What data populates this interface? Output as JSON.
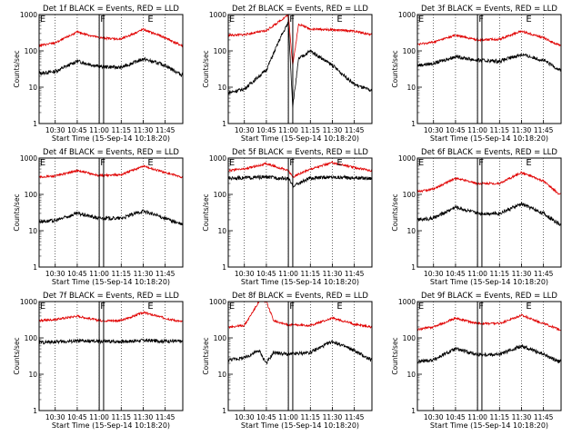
{
  "figure": {
    "xlabel": "Start Time (15-Sep-14 10:18:20)",
    "ylabel": "Counts/sec"
  },
  "colors": {
    "events": "#000000",
    "lld": "#e00000",
    "axes": "#000000",
    "background": "#ffffff"
  },
  "chart_data": [
    {
      "type": "line",
      "title": "Det 1f BLACK = Events, RED = LLD",
      "xlabel": "Start Time (15-Sep-14 10:18:20)",
      "ylabel": "Counts/sec",
      "ylim": [
        1,
        1000
      ],
      "yscale": "log",
      "xticks": [
        "10:30",
        "10:45",
        "11:00",
        "11:15",
        "11:30",
        "11:45"
      ],
      "yticks": [
        "1",
        "10",
        "100",
        "1000"
      ],
      "markers": [
        {
          "label": "E",
          "pos": "left"
        },
        {
          "label": "F",
          "pos": "mid"
        },
        {
          "label": "E",
          "pos": "right"
        }
      ],
      "series": [
        {
          "name": "Events",
          "color": "#000000",
          "x": [
            "10:19",
            "10:30",
            "10:45",
            "11:00",
            "11:15",
            "11:30",
            "11:45",
            "11:56"
          ],
          "values": [
            24,
            27,
            52,
            37,
            35,
            60,
            40,
            22
          ]
        },
        {
          "name": "LLD",
          "color": "#e00000",
          "x": [
            "10:19",
            "10:30",
            "10:45",
            "11:00",
            "11:15",
            "11:30",
            "11:45",
            "11:56"
          ],
          "values": [
            140,
            165,
            330,
            230,
            210,
            390,
            230,
            140
          ]
        }
      ]
    },
    {
      "type": "line",
      "title": "Det 2f BLACK = Events, RED = LLD",
      "xlabel": "Start Time (15-Sep-14 10:18:20)",
      "ylabel": "Counts/sec",
      "ylim": [
        1,
        1000
      ],
      "yscale": "log",
      "xticks": [
        "10:30",
        "10:45",
        "11:00",
        "11:15",
        "11:30",
        "11:45"
      ],
      "yticks": [
        "1",
        "10",
        "100",
        "1000"
      ],
      "markers": [
        {
          "label": "E",
          "pos": "left"
        },
        {
          "label": "F",
          "pos": "mid"
        },
        {
          "label": "E",
          "pos": "right"
        }
      ],
      "series": [
        {
          "name": "Events",
          "color": "#000000",
          "x": [
            "10:19",
            "10:30",
            "10:45",
            "10:55",
            "11:00",
            "11:03",
            "11:07",
            "11:15",
            "11:30",
            "11:45",
            "11:56"
          ],
          "values": [
            7,
            9,
            30,
            250,
            600,
            3,
            60,
            100,
            40,
            12,
            8
          ]
        },
        {
          "name": "LLD",
          "color": "#e00000",
          "x": [
            "10:19",
            "10:30",
            "10:45",
            "10:55",
            "11:00",
            "11:03",
            "11:07",
            "11:15",
            "11:30",
            "11:45",
            "11:56"
          ],
          "values": [
            270,
            280,
            360,
            700,
            1000,
            40,
            550,
            400,
            380,
            350,
            280
          ]
        }
      ]
    },
    {
      "type": "line",
      "title": "Det 3f BLACK = Events, RED = LLD",
      "xlabel": "Start Time (15-Sep-14 10:18:20)",
      "ylabel": "Counts/sec",
      "ylim": [
        1,
        1000
      ],
      "yscale": "log",
      "xticks": [
        "10:30",
        "10:45",
        "11:00",
        "11:15",
        "11:30",
        "11:45"
      ],
      "yticks": [
        "1",
        "10",
        "100",
        "1000"
      ],
      "markers": [
        {
          "label": "E",
          "pos": "left"
        },
        {
          "label": "F",
          "pos": "mid"
        },
        {
          "label": "E",
          "pos": "right"
        }
      ],
      "series": [
        {
          "name": "Events",
          "color": "#000000",
          "x": [
            "10:19",
            "10:30",
            "10:45",
            "11:00",
            "11:15",
            "11:30",
            "11:45",
            "11:56"
          ],
          "values": [
            40,
            45,
            70,
            55,
            52,
            80,
            55,
            30
          ]
        },
        {
          "name": "LLD",
          "color": "#e00000",
          "x": [
            "10:19",
            "10:30",
            "10:45",
            "11:00",
            "11:15",
            "11:30",
            "11:45",
            "11:56"
          ],
          "values": [
            150,
            175,
            270,
            200,
            210,
            350,
            230,
            140
          ]
        }
      ]
    },
    {
      "type": "line",
      "title": "Det 4f BLACK = Events, RED = LLD",
      "xlabel": "Start Time (15-Sep-14 10:18:20)",
      "ylabel": "Counts/sec",
      "ylim": [
        1,
        1000
      ],
      "yscale": "log",
      "xticks": [
        "10:30",
        "10:45",
        "11:00",
        "11:15",
        "11:30",
        "11:45"
      ],
      "yticks": [
        "1",
        "10",
        "100",
        "1000"
      ],
      "markers": [
        {
          "label": "E",
          "pos": "left"
        },
        {
          "label": "F",
          "pos": "mid"
        },
        {
          "label": "E",
          "pos": "right"
        }
      ],
      "series": [
        {
          "name": "Events",
          "color": "#000000",
          "x": [
            "10:19",
            "10:30",
            "10:45",
            "11:00",
            "11:15",
            "11:30",
            "11:45",
            "11:56"
          ],
          "values": [
            18,
            19,
            30,
            22,
            22,
            35,
            22,
            15
          ]
        },
        {
          "name": "LLD",
          "color": "#e00000",
          "x": [
            "10:19",
            "10:30",
            "10:45",
            "11:00",
            "11:15",
            "11:30",
            "11:45",
            "11:56"
          ],
          "values": [
            300,
            320,
            450,
            330,
            350,
            600,
            400,
            300
          ]
        }
      ]
    },
    {
      "type": "line",
      "title": "Det 5f BLACK = Events, RED = LLD",
      "xlabel": "Start Time (15-Sep-14 10:18:20)",
      "ylabel": "Counts/sec",
      "ylim": [
        1,
        1000
      ],
      "yscale": "log",
      "xticks": [
        "10:30",
        "10:45",
        "11:00",
        "11:15",
        "11:30",
        "11:45"
      ],
      "yticks": [
        "1",
        "10",
        "100",
        "1000"
      ],
      "markers": [
        {
          "label": "E",
          "pos": "left"
        },
        {
          "label": "F",
          "pos": "mid"
        },
        {
          "label": "E",
          "pos": "right"
        }
      ],
      "series": [
        {
          "name": "Events",
          "color": "#000000",
          "x": [
            "10:19",
            "10:30",
            "10:45",
            "11:00",
            "11:03",
            "11:15",
            "11:30",
            "11:45",
            "11:56"
          ],
          "values": [
            280,
            285,
            300,
            270,
            170,
            280,
            300,
            285,
            280
          ]
        },
        {
          "name": "LLD",
          "color": "#e00000",
          "x": [
            "10:19",
            "10:30",
            "10:45",
            "11:00",
            "11:03",
            "11:15",
            "11:30",
            "11:45",
            "11:56"
          ],
          "values": [
            450,
            500,
            700,
            450,
            300,
            500,
            750,
            550,
            450
          ]
        }
      ]
    },
    {
      "type": "line",
      "title": "Det 6f BLACK = Events, RED = LLD",
      "xlabel": "Start Time (15-Sep-14 10:18:20)",
      "ylabel": "Counts/sec",
      "ylim": [
        1,
        1000
      ],
      "yscale": "log",
      "xticks": [
        "10:30",
        "10:45",
        "11:00",
        "11:15",
        "11:30",
        "11:45"
      ],
      "yticks": [
        "1",
        "10",
        "100",
        "1000"
      ],
      "markers": [
        {
          "label": "E",
          "pos": "left"
        },
        {
          "label": "F",
          "pos": "mid"
        },
        {
          "label": "E",
          "pos": "right"
        }
      ],
      "series": [
        {
          "name": "Events",
          "color": "#000000",
          "x": [
            "10:19",
            "10:30",
            "10:45",
            "11:00",
            "11:15",
            "11:30",
            "11:45",
            "11:56"
          ],
          "values": [
            20,
            22,
            45,
            30,
            30,
            55,
            30,
            15
          ]
        },
        {
          "name": "LLD",
          "color": "#e00000",
          "x": [
            "10:19",
            "10:30",
            "10:45",
            "11:00",
            "11:15",
            "11:30",
            "11:45",
            "11:56"
          ],
          "values": [
            120,
            140,
            280,
            200,
            200,
            400,
            230,
            100
          ]
        }
      ]
    },
    {
      "type": "line",
      "title": "Det 7f BLACK = Events, RED = LLD",
      "xlabel": "Start Time (15-Sep-14 10:18:20)",
      "ylabel": "Counts/sec",
      "ylim": [
        1,
        1000
      ],
      "yscale": "log",
      "xticks": [
        "10:30",
        "10:45",
        "11:00",
        "11:15",
        "11:30",
        "11:45"
      ],
      "yticks": [
        "1",
        "10",
        "100",
        "1000"
      ],
      "markers": [
        {
          "label": "E",
          "pos": "left"
        },
        {
          "label": "F",
          "pos": "mid"
        },
        {
          "label": "E",
          "pos": "right"
        }
      ],
      "series": [
        {
          "name": "Events",
          "color": "#000000",
          "x": [
            "10:19",
            "10:30",
            "10:45",
            "11:00",
            "11:15",
            "11:30",
            "11:45",
            "11:56"
          ],
          "values": [
            75,
            78,
            82,
            80,
            80,
            85,
            82,
            80
          ]
        },
        {
          "name": "LLD",
          "color": "#e00000",
          "x": [
            "10:19",
            "10:30",
            "10:45",
            "11:00",
            "11:15",
            "11:30",
            "11:45",
            "11:56"
          ],
          "values": [
            300,
            320,
            400,
            300,
            300,
            500,
            350,
            280
          ]
        }
      ]
    },
    {
      "type": "line",
      "title": "Det 8f BLACK = Events, RED = LLD",
      "xlabel": "Start Time (15-Sep-14 10:18:20)",
      "ylabel": "Counts/sec",
      "ylim": [
        1,
        1000
      ],
      "yscale": "log",
      "xticks": [
        "10:30",
        "10:45",
        "11:00",
        "11:15",
        "11:30",
        "11:45"
      ],
      "yticks": [
        "1",
        "10",
        "100",
        "1000"
      ],
      "markers": [
        {
          "label": "E",
          "pos": "left"
        },
        {
          "label": "F",
          "pos": "mid"
        },
        {
          "label": "E",
          "pos": "right"
        }
      ],
      "series": [
        {
          "name": "Events",
          "color": "#000000",
          "x": [
            "10:19",
            "10:30",
            "10:40",
            "10:45",
            "10:50",
            "11:00",
            "11:15",
            "11:30",
            "11:45",
            "11:56"
          ],
          "values": [
            25,
            28,
            45,
            20,
            40,
            35,
            40,
            80,
            45,
            25
          ]
        },
        {
          "name": "LLD",
          "color": "#e00000",
          "x": [
            "10:19",
            "10:30",
            "10:40",
            "10:45",
            "10:50",
            "11:00",
            "11:15",
            "11:30",
            "11:45",
            "11:56"
          ],
          "values": [
            200,
            220,
            1000,
            1000,
            300,
            230,
            220,
            350,
            240,
            200
          ]
        }
      ]
    },
    {
      "type": "line",
      "title": "Det 9f BLACK = Events, RED = LLD",
      "xlabel": "Start Time (15-Sep-14 10:18:20)",
      "ylabel": "Counts/sec",
      "ylim": [
        1,
        1000
      ],
      "yscale": "log",
      "xticks": [
        "10:30",
        "10:45",
        "11:00",
        "11:15",
        "11:30",
        "11:45"
      ],
      "yticks": [
        "1",
        "10",
        "100",
        "1000"
      ],
      "markers": [
        {
          "label": "E",
          "pos": "left"
        },
        {
          "label": "F",
          "pos": "mid"
        },
        {
          "label": "E",
          "pos": "right"
        }
      ],
      "series": [
        {
          "name": "Events",
          "color": "#000000",
          "x": [
            "10:19",
            "10:30",
            "10:45",
            "11:00",
            "11:15",
            "11:30",
            "11:45",
            "11:56"
          ],
          "values": [
            22,
            25,
            50,
            35,
            35,
            60,
            35,
            22
          ]
        },
        {
          "name": "LLD",
          "color": "#e00000",
          "x": [
            "10:19",
            "10:30",
            "10:45",
            "11:00",
            "11:15",
            "11:30",
            "11:45",
            "11:56"
          ],
          "values": [
            170,
            200,
            350,
            250,
            250,
            420,
            250,
            170
          ]
        }
      ]
    }
  ]
}
